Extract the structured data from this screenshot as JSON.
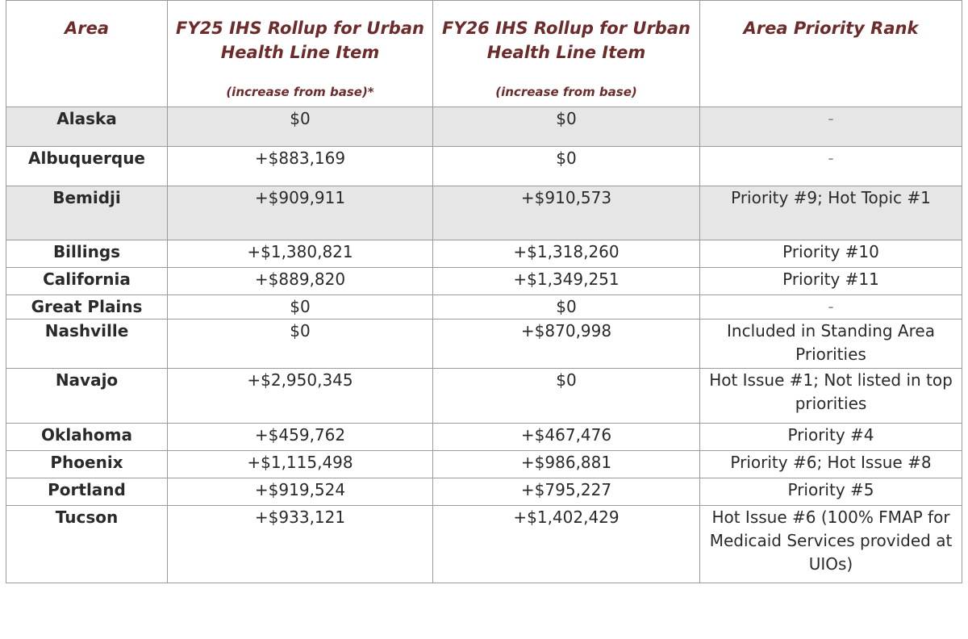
{
  "headers": {
    "area": "Area",
    "fy25_main": "FY25 IHS Rollup for Urban Health Line Item",
    "fy25_note": "(increase from base)*",
    "fy26_main": "FY26 IHS Rollup for Urban Health Line Item",
    "fy26_note": "(increase from base)",
    "rank": "Area Priority Rank"
  },
  "rows": [
    {
      "area": "Alaska",
      "fy25": "$0",
      "fy26": "$0",
      "rank": "-"
    },
    {
      "area": "Albuquerque",
      "fy25": "+$883,169",
      "fy26": "$0",
      "rank": "-"
    },
    {
      "area": "Bemidji",
      "fy25": "+$909,911",
      "fy26": "+$910,573",
      "rank": "Priority #9; Hot Topic #1"
    },
    {
      "area": "Billings",
      "fy25": "+$1,380,821",
      "fy26": "+$1,318,260",
      "rank": "Priority #10"
    },
    {
      "area": "California",
      "fy25": "+$889,820",
      "fy26": "+$1,349,251",
      "rank": "Priority #11"
    },
    {
      "area": "Great Plains",
      "fy25": "$0",
      "fy26": "$0",
      "rank": "-"
    },
    {
      "area": "Nashville",
      "fy25": "$0",
      "fy26": "+$870,998",
      "rank": "Included in Standing Area Priorities"
    },
    {
      "area": "Navajo",
      "fy25": "+$2,950,345",
      "fy26": "$0",
      "rank": "Hot Issue #1; Not listed in top priorities"
    },
    {
      "area": "Oklahoma",
      "fy25": "+$459,762",
      "fy26": "+$467,476",
      "rank": "Priority #4"
    },
    {
      "area": "Phoenix",
      "fy25": "+$1,115,498",
      "fy26": "+$986,881",
      "rank": "Priority #6; Hot Issue #8"
    },
    {
      "area": "Portland",
      "fy25": "+$919,524",
      "fy26": "+$795,227",
      "rank": "Priority #5"
    },
    {
      "area": "Tucson",
      "fy25": "+$933,121",
      "fy26": "+$1,402,429",
      "rank": "Hot Issue #6 (100% FMAP for Medicaid Services provided at UIOs)"
    }
  ]
}
